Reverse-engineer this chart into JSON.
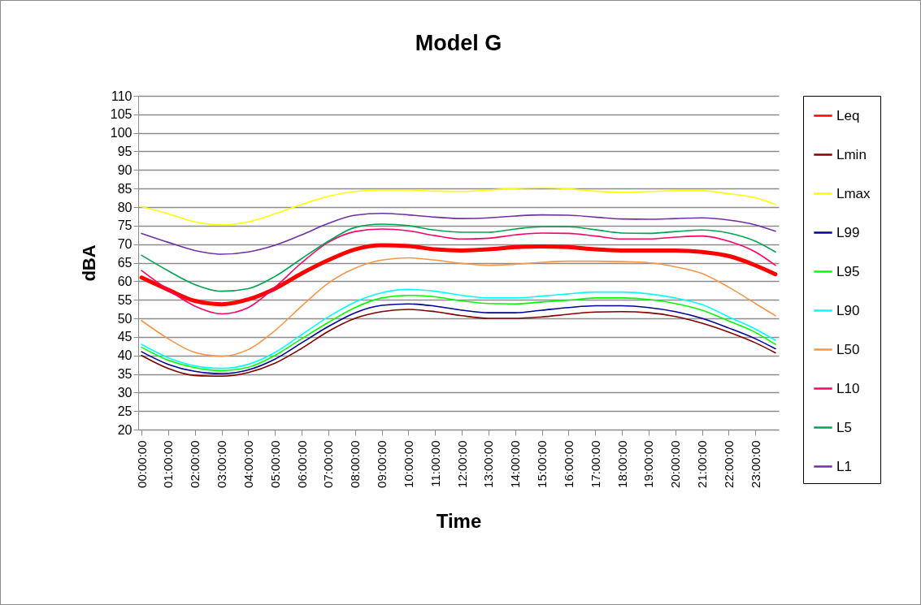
{
  "chart_data": {
    "type": "line",
    "title": "Model  G",
    "xlabel": "Time",
    "ylabel": "dBA",
    "x": [
      0,
      1,
      2,
      3,
      4,
      5,
      6,
      7,
      8,
      9,
      10,
      11,
      12,
      13,
      14,
      15,
      16,
      17,
      18,
      19,
      20,
      21,
      22,
      23,
      23.75
    ],
    "xlim": [
      -0.125,
      23.875
    ],
    "xticks": [
      {
        "value": 0,
        "label": "00:00:00"
      },
      {
        "value": 1,
        "label": "01:00:00"
      },
      {
        "value": 2,
        "label": "02:00:00"
      },
      {
        "value": 3,
        "label": "03:00:00"
      },
      {
        "value": 4,
        "label": "04:00:00"
      },
      {
        "value": 5,
        "label": "05:00:00"
      },
      {
        "value": 6,
        "label": "06:00:00"
      },
      {
        "value": 7,
        "label": "07:00:00"
      },
      {
        "value": 8,
        "label": "08:00:00"
      },
      {
        "value": 9,
        "label": "09:00:00"
      },
      {
        "value": 10,
        "label": "10:00:00"
      },
      {
        "value": 11,
        "label": "11:00:00"
      },
      {
        "value": 12,
        "label": "12:00:00"
      },
      {
        "value": 13,
        "label": "13:00:00"
      },
      {
        "value": 14,
        "label": "14:00:00"
      },
      {
        "value": 15,
        "label": "15:00:00"
      },
      {
        "value": 16,
        "label": "16:00:00"
      },
      {
        "value": 17,
        "label": "17:00:00"
      },
      {
        "value": 18,
        "label": "18:00:00"
      },
      {
        "value": 19,
        "label": "19:00:00"
      },
      {
        "value": 20,
        "label": "20:00:00"
      },
      {
        "value": 21,
        "label": "21:00:00"
      },
      {
        "value": 22,
        "label": "22:00:00"
      },
      {
        "value": 23,
        "label": "23:00:00"
      }
    ],
    "ylim": [
      20,
      110
    ],
    "yticks": [
      20,
      25,
      30,
      35,
      40,
      45,
      50,
      55,
      60,
      65,
      70,
      75,
      80,
      85,
      90,
      95,
      100,
      105,
      110
    ],
    "grid": "y",
    "legend": "right",
    "marker": "none",
    "line_style": "solid",
    "series": [
      {
        "name": "Leq",
        "color": "#ff0000",
        "values": [
          61.0,
          57.7,
          54.7,
          53.8,
          55.1,
          58.0,
          62.1,
          65.7,
          68.6,
          69.7,
          69.5,
          68.6,
          68.3,
          68.6,
          69.2,
          69.4,
          69.2,
          68.6,
          68.3,
          68.3,
          68.3,
          67.9,
          66.8,
          64.3,
          61.9
        ]
      },
      {
        "name": "Lmin",
        "color": "#800000",
        "values": [
          40.0,
          36.5,
          34.6,
          34.4,
          35.4,
          37.9,
          41.9,
          46.5,
          50.0,
          51.8,
          52.4,
          51.8,
          50.7,
          50.0,
          50.0,
          50.4,
          51.1,
          51.7,
          51.8,
          51.5,
          50.5,
          48.7,
          46.3,
          43.4,
          40.7
        ]
      },
      {
        "name": "Lmax",
        "color": "#ffff00",
        "values": [
          80.1,
          78.2,
          76.0,
          75.2,
          76.0,
          78.2,
          80.7,
          82.9,
          84.2,
          84.6,
          84.6,
          84.3,
          84.2,
          84.6,
          85.0,
          85.2,
          84.9,
          84.3,
          84.0,
          84.2,
          84.4,
          84.4,
          83.6,
          82.5,
          80.7
        ]
      },
      {
        "name": "L99",
        "color": "#000099",
        "values": [
          41.0,
          37.6,
          35.7,
          35.1,
          36.1,
          39.0,
          43.4,
          47.8,
          51.5,
          53.5,
          53.9,
          53.3,
          52.2,
          51.5,
          51.5,
          52.2,
          52.9,
          53.4,
          53.4,
          52.9,
          51.8,
          50.0,
          47.4,
          44.5,
          41.8
        ]
      },
      {
        "name": "L95",
        "color": "#00ff00",
        "values": [
          42.2,
          38.7,
          36.7,
          35.9,
          36.8,
          40.0,
          44.5,
          48.9,
          52.9,
          55.5,
          56.2,
          55.8,
          54.7,
          54.0,
          53.9,
          54.4,
          54.9,
          55.5,
          55.5,
          55.1,
          54.0,
          52.2,
          49.3,
          46.2,
          43.0
        ]
      },
      {
        "name": "L90",
        "color": "#00ffff",
        "values": [
          43.0,
          39.4,
          37.2,
          36.5,
          37.6,
          40.8,
          45.6,
          50.4,
          54.4,
          56.9,
          57.8,
          57.3,
          56.2,
          55.5,
          55.5,
          56.0,
          56.6,
          57.1,
          57.1,
          56.6,
          55.5,
          53.7,
          50.4,
          47.1,
          44.1
        ]
      },
      {
        "name": "L50",
        "color": "#f79646",
        "values": [
          49.4,
          44.5,
          40.8,
          39.8,
          41.6,
          46.7,
          53.3,
          59.5,
          63.5,
          65.7,
          66.3,
          65.7,
          64.8,
          64.3,
          64.6,
          65.1,
          65.4,
          65.4,
          65.3,
          65.0,
          63.9,
          62.1,
          58.4,
          54.0,
          50.7
        ]
      },
      {
        "name": "L10",
        "color": "#ff0066",
        "values": [
          62.9,
          57.7,
          53.3,
          51.2,
          52.9,
          58.4,
          65.0,
          70.5,
          73.4,
          74.1,
          73.6,
          72.3,
          71.4,
          71.6,
          72.5,
          73.0,
          72.9,
          72.2,
          71.4,
          71.4,
          71.9,
          72.2,
          70.8,
          67.9,
          64.3
        ]
      },
      {
        "name": "L5",
        "color": "#00a550",
        "values": [
          67.0,
          62.8,
          59.1,
          57.3,
          58.0,
          61.3,
          66.1,
          70.8,
          74.5,
          75.4,
          75.0,
          73.8,
          73.2,
          73.2,
          74.1,
          74.7,
          74.7,
          73.9,
          73.0,
          72.9,
          73.4,
          73.8,
          73.0,
          70.8,
          67.9
        ]
      },
      {
        "name": "L1",
        "color": "#7030a0",
        "values": [
          72.9,
          70.5,
          68.3,
          67.3,
          67.9,
          69.7,
          72.5,
          75.6,
          77.8,
          78.3,
          77.9,
          77.3,
          76.9,
          77.1,
          77.6,
          77.9,
          77.8,
          77.3,
          76.8,
          76.7,
          76.9,
          77.1,
          76.5,
          75.2,
          73.5
        ]
      }
    ]
  }
}
